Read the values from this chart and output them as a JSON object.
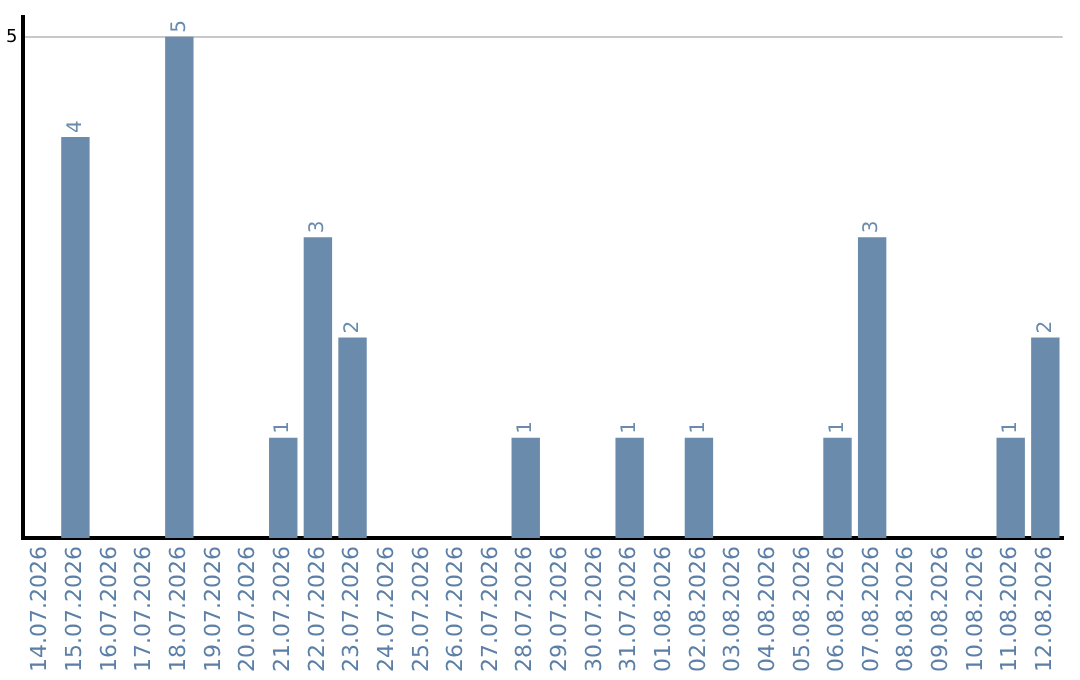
{
  "chart_data": {
    "type": "bar",
    "categories": [
      "14.07.2026",
      "15.07.2026",
      "16.07.2026",
      "17.07.2026",
      "18.07.2026",
      "19.07.2026",
      "20.07.2026",
      "21.07.2026",
      "22.07.2026",
      "23.07.2026",
      "24.07.2026",
      "25.07.2026",
      "26.07.2026",
      "27.07.2026",
      "28.07.2026",
      "29.07.2026",
      "30.07.2026",
      "31.07.2026",
      "01.08.2026",
      "02.08.2026",
      "03.08.2026",
      "04.08.2026",
      "05.08.2026",
      "06.08.2026",
      "07.08.2026",
      "08.08.2026",
      "09.08.2026",
      "10.08.2026",
      "11.08.2026",
      "12.08.2026"
    ],
    "values": [
      0,
      4,
      0,
      0,
      5,
      0,
      0,
      1,
      3,
      2,
      0,
      0,
      0,
      0,
      1,
      0,
      0,
      1,
      0,
      1,
      0,
      0,
      0,
      1,
      3,
      0,
      0,
      0,
      1,
      2
    ],
    "value_labels": [
      null,
      "4",
      null,
      null,
      "5",
      null,
      null,
      "1",
      "3",
      "2",
      null,
      null,
      null,
      null,
      "1",
      null,
      null,
      "1",
      null,
      "1",
      null,
      null,
      null,
      "1",
      "3",
      null,
      null,
      null,
      "1",
      "2"
    ],
    "color": "#6a8bab",
    "ylim": [
      0,
      5.2
    ],
    "yticks": [
      5
    ],
    "grid": "y",
    "legend": false
  }
}
